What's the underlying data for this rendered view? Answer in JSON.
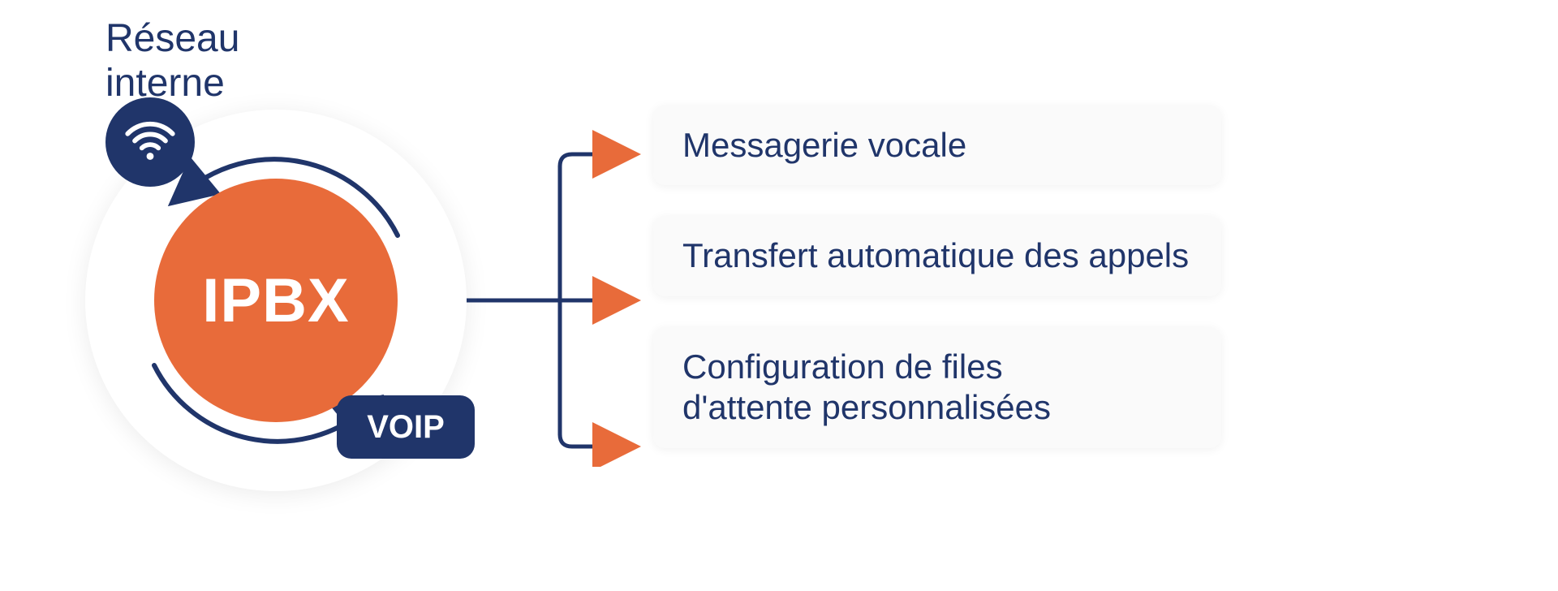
{
  "colors": {
    "navy": "#20356a",
    "orange": "#e86b3a",
    "orange_arrow": "#e86b3a",
    "white": "#ffffff",
    "box_bg": "#fafafa",
    "box_shadow": "rgba(0,0,0,0.06)",
    "line_stroke": "#20356a"
  },
  "network_label": "Réseau\ninterne",
  "ipbx": {
    "center_label": "IPBX",
    "center_bg": "#e86b3a",
    "wifi_bg": "#20356a",
    "voip_label": "VOIP",
    "voip_bg": "#20356a",
    "ring_stroke": "#20356a",
    "ring_stroke_width": 6
  },
  "connector": {
    "stroke": "#20356a",
    "stroke_width": 5,
    "arrow_fill": "#e86b3a"
  },
  "features": [
    {
      "label": "Messagerie vocale"
    },
    {
      "label": "Transfert automatique des appels"
    },
    {
      "label": "Configuration de files\nd'attente personnalisées"
    }
  ],
  "typography": {
    "label_color": "#20356a",
    "label_fontsize": 48,
    "center_fontsize": 76,
    "voip_fontsize": 40,
    "feature_fontsize": 42
  }
}
